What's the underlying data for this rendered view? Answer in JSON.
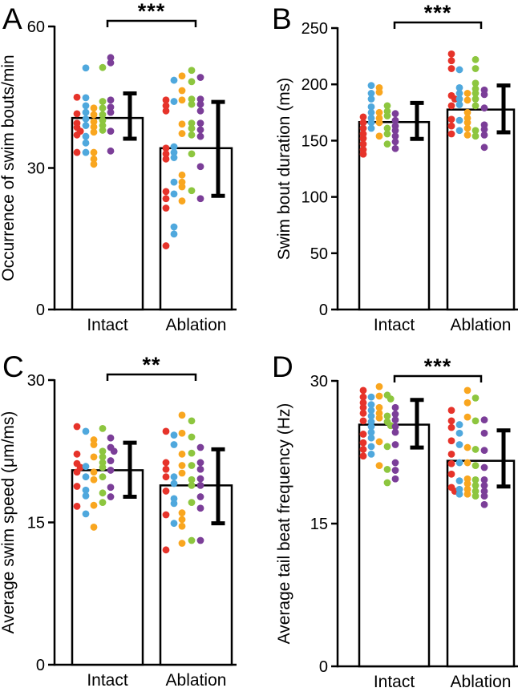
{
  "figure": {
    "background": "#ffffff",
    "panel_letters": [
      "A",
      "B",
      "C",
      "D"
    ]
  },
  "colors": {
    "axis": "#000000",
    "bar_fill": "#ffffff",
    "bar_stroke": "#000000",
    "red": "#e6332a",
    "blue": "#4fa8dd",
    "orange": "#f9a61f",
    "green": "#8dc63f",
    "purple": "#7b3e98"
  },
  "chart_data": [
    {
      "panel": "A",
      "type": "bar",
      "ylabel": "Occurrence of swim bouts/min",
      "ylim": [
        0,
        60
      ],
      "yticks": [
        0,
        30,
        60
      ],
      "categories": [
        "Intact",
        "Ablation"
      ],
      "bar_means": [
        40.6,
        34.2
      ],
      "error_bars": [
        [
          36.2,
          45.8
        ],
        [
          24.1,
          44.0
        ]
      ],
      "significance": "***",
      "point_colors": [
        "red",
        "blue",
        "orange",
        "green",
        "purple"
      ],
      "points": [
        {
          "red": [
            45.0,
            41.5,
            39.5,
            38.6,
            37.8,
            37.0,
            33.3
          ],
          "blue": [
            51.2,
            44.9,
            43.2,
            41.8,
            40.4,
            39.0,
            36.7,
            35.3,
            33.3
          ],
          "orange": [
            42.7,
            41.3,
            39.8,
            38.7,
            37.6,
            33.3,
            31.9,
            30.8
          ],
          "green": [
            51.3,
            44.1,
            42.7,
            41.3,
            40.1,
            39.0,
            38.0
          ],
          "purple": [
            53.4,
            52.3,
            44.4,
            42.9,
            41.8,
            37.8,
            33.6
          ]
        },
        {
          "red": [
            44.4,
            43.2,
            42.1,
            34.2,
            33.0,
            31.9,
            25.0,
            23.5,
            21.5,
            13.5
          ],
          "blue": [
            48.6,
            44.1,
            34.5,
            33.3,
            32.2,
            27.0,
            24.5,
            17.5,
            16.0
          ],
          "orange": [
            49.5,
            46.4,
            44.4,
            39.3,
            37.3,
            28.5,
            27.0,
            26.0,
            23.0
          ],
          "green": [
            50.7,
            48.3,
            44.6,
            43.5,
            39.5,
            38.4,
            37.0,
            33.0,
            25.2
          ],
          "purple": [
            49.2,
            44.6,
            43.5,
            42.1,
            39.5,
            38.1,
            36.7,
            30.3,
            23.5
          ]
        }
      ]
    },
    {
      "panel": "B",
      "type": "bar",
      "ylabel": "Swim bout duration (ms)",
      "ylim": [
        0,
        250
      ],
      "yticks": [
        0,
        50,
        100,
        150,
        200,
        250
      ],
      "categories": [
        "Intact",
        "Ablation"
      ],
      "bar_means": [
        166.5,
        177.6
      ],
      "error_bars": [
        [
          151.5,
          183.5
        ],
        [
          157.4,
          199.0
        ]
      ],
      "significance": "***",
      "point_colors": [
        "red",
        "blue",
        "orange",
        "green",
        "purple"
      ],
      "points": [
        {
          "red": [
            171,
            166,
            161,
            156,
            152,
            147,
            142,
            138
          ],
          "blue": [
            199,
            192,
            187,
            180,
            175,
            170,
            166,
            161
          ],
          "orange": [
            197,
            193,
            175,
            170,
            166,
            154
          ],
          "green": [
            181,
            176,
            172,
            161,
            156,
            147
          ],
          "purple": [
            174,
            168,
            163,
            159,
            154,
            149,
            143
          ]
        },
        {
          "red": [
            227,
            221,
            214,
            190,
            187,
            181,
            169,
            163,
            156
          ],
          "blue": [
            213,
            197,
            192,
            187,
            182,
            168,
            159
          ],
          "orange": [
            192,
            186,
            175,
            170,
            166,
            161,
            155
          ],
          "green": [
            222,
            214,
            201,
            196,
            192,
            187,
            181,
            159,
            154
          ],
          "purple": [
            195,
            191,
            179,
            164,
            160,
            155,
            144
          ]
        }
      ]
    },
    {
      "panel": "C",
      "type": "bar",
      "ylabel": "Average swim speed (μm/ms)",
      "ylim": [
        0,
        30
      ],
      "yticks": [
        0,
        15,
        30
      ],
      "categories": [
        "Intact",
        "Ablation"
      ],
      "bar_means": [
        20.5,
        18.9
      ],
      "error_bars": [
        [
          17.7,
          23.4
        ],
        [
          14.9,
          22.7
        ]
      ],
      "significance": "**",
      "point_colors": [
        "red",
        "blue",
        "orange",
        "green",
        "purple"
      ],
      "points": [
        {
          "red": [
            25.1,
            22.2,
            21.2,
            20.8,
            20.3,
            18.8,
            16.7
          ],
          "blue": [
            24.6,
            20.9,
            19.8,
            18.4,
            17.8,
            15.9
          ],
          "orange": [
            23.7,
            23.2,
            21.9,
            20.3,
            19.5,
            16.8,
            14.5
          ],
          "green": [
            24.9,
            22.5,
            21.9,
            21.3,
            20.8,
            19.8,
            18.1,
            17.1
          ],
          "purple": [
            23.9,
            22.9,
            22.5,
            21.5,
            20.5,
            18.7,
            17.7
          ]
        },
        {
          "red": [
            24.6,
            21.3,
            20.6,
            19.8,
            18.3,
            15.8,
            12.1
          ],
          "blue": [
            24.2,
            23.2,
            19.8,
            19.1,
            17.5,
            17.0,
            14.9
          ],
          "orange": [
            26.3,
            24.4,
            22.2,
            21.0,
            20.2,
            16.0,
            15.3,
            14.6,
            12.8
          ],
          "green": [
            25.7,
            24.0,
            22.3,
            21.0,
            19.5,
            18.9,
            17.1,
            13.1
          ],
          "purple": [
            22.9,
            21.3,
            20.6,
            19.6,
            18.9,
            17.7,
            16.5,
            13.1
          ]
        }
      ]
    },
    {
      "panel": "D",
      "type": "bar",
      "ylabel": "Average tail beat frequency (Hz)",
      "ylim": [
        0,
        30
      ],
      "yticks": [
        0,
        15,
        30
      ],
      "categories": [
        "Intact",
        "Ablation"
      ],
      "bar_means": [
        25.4,
        21.6
      ],
      "error_bars": [
        [
          23.0,
          28.0
        ],
        [
          18.9,
          24.8
        ]
      ],
      "significance": "***",
      "point_colors": [
        "red",
        "blue",
        "orange",
        "green",
        "purple"
      ],
      "points": [
        {
          "red": [
            29.0,
            28.3,
            27.7,
            27.2,
            26.6,
            25.8,
            24.4,
            23.5,
            22.8,
            22.1
          ],
          "blue": [
            28.3,
            27.5,
            26.9,
            26.3,
            25.7,
            25.2,
            24.6,
            24.0,
            23.1,
            22.3
          ],
          "orange": [
            29.4,
            28.4,
            27.2,
            26.6,
            26.1,
            23.6,
            21.1
          ],
          "green": [
            28.5,
            28.1,
            26.3,
            25.7,
            25.3,
            23.1,
            20.7,
            19.3
          ],
          "purple": [
            27.2,
            26.5,
            25.9,
            25.2,
            24.6,
            23.3,
            21.4,
            20.6,
            19.7
          ]
        },
        {
          "red": [
            26.9,
            25.8,
            25.1,
            23.7,
            22.3,
            21.3,
            20.2,
            18.8,
            18.4
          ],
          "blue": [
            25.4,
            24.5,
            23.3,
            21.4,
            19.5,
            18.6,
            18.1
          ],
          "orange": [
            29.0,
            27.7,
            26.2,
            23.0,
            21.4,
            19.7,
            19.2,
            18.6,
            18.1
          ],
          "green": [
            28.2,
            25.8,
            22.8,
            21.1,
            19.6,
            19.0,
            18.4,
            17.9
          ],
          "purple": [
            25.9,
            24.5,
            22.7,
            20.9,
            19.6,
            19.0,
            18.4,
            17.9,
            17.0
          ]
        }
      ]
    }
  ]
}
